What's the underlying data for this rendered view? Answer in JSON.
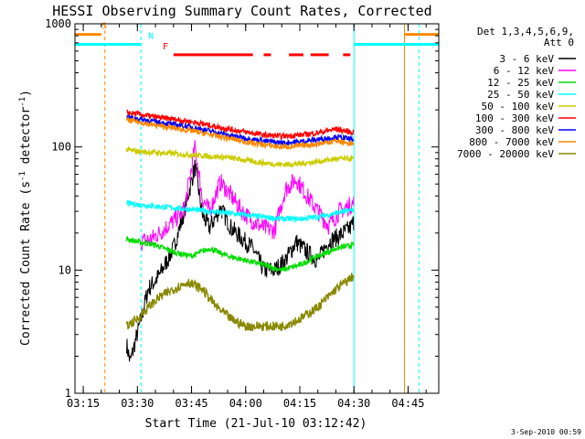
{
  "chart_data": {
    "type": "line",
    "title": "HESSI Observing Summary Count Rates, Corrected",
    "xlabel": "Start Time (21-Jul-10 03:12:42)",
    "ylabel": "Corrected Count Rate (s",
    "ylabel_sup1": "-1",
    "ylabel_mid": " detector",
    "ylabel_sup2": "-1",
    "ylabel_end": ")",
    "footer": "3-Sep-2010 00:59",
    "y_scale": "log",
    "ylim": [
      1,
      1000
    ],
    "xlim": [
      "03:12:42",
      "04:53:30"
    ],
    "x_ticks": [
      "03:15",
      "03:30",
      "03:45",
      "04:00",
      "04:15",
      "04:30",
      "04:45"
    ],
    "y_ticks": [
      "1",
      "10",
      "100",
      "1000"
    ],
    "legend": {
      "title1": "Det 1,3,4,5,6,9,",
      "title2": "Att 0",
      "placement": "right"
    },
    "series": [
      {
        "name": "3 - 6 keV",
        "color": "#000000",
        "x": [
          "03:27",
          "03:28",
          "03:31",
          "03:33",
          "03:36",
          "03:40",
          "03:43",
          "03:46",
          "03:48",
          "03:50",
          "03:53",
          "03:56",
          "03:59",
          "04:02",
          "04:05",
          "04:08",
          "04:11",
          "04:14",
          "04:17",
          "04:20",
          "04:23",
          "04:26",
          "04:29",
          "04:30"
        ],
        "y": [
          2.5,
          1.8,
          4,
          7,
          9,
          15,
          30,
          70,
          28,
          22,
          32,
          22,
          18,
          15,
          10,
          10,
          12,
          17,
          14,
          12,
          17,
          19,
          22,
          25
        ]
      },
      {
        "name": "6 - 12 keV",
        "color": "#ff00ff",
        "x": [
          "03:31",
          "03:34",
          "03:37",
          "03:40",
          "03:43",
          "03:46",
          "03:48",
          "03:50",
          "03:53",
          "03:56",
          "03:59",
          "04:02",
          "04:05",
          "04:08",
          "04:11",
          "04:14",
          "04:17",
          "04:20",
          "04:23",
          "04:26",
          "04:30"
        ],
        "y": [
          17,
          18,
          21,
          25,
          31,
          100,
          38,
          30,
          52,
          40,
          30,
          25,
          22,
          21,
          45,
          55,
          40,
          30,
          23,
          30,
          35
        ]
      },
      {
        "name": "12 - 25 keV",
        "color": "#00dd00",
        "x": [
          "03:27",
          "03:30",
          "03:35",
          "03:40",
          "03:45",
          "03:50",
          "03:55",
          "04:00",
          "04:05",
          "04:10",
          "04:15",
          "04:20",
          "04:25",
          "04:30"
        ],
        "y": [
          18,
          17,
          16,
          14,
          13,
          15,
          13,
          12,
          11,
          10,
          11,
          13,
          15,
          16
        ]
      },
      {
        "name": "25 - 50 keV",
        "color": "#00ffff",
        "x": [
          "03:27",
          "03:30",
          "03:35",
          "03:40",
          "03:45",
          "03:50",
          "03:55",
          "04:00",
          "04:05",
          "04:10",
          "04:15",
          "04:20",
          "04:25",
          "04:30"
        ],
        "y": [
          35,
          34,
          33,
          32,
          31,
          30,
          29,
          28,
          27,
          26,
          26,
          27,
          29,
          31
        ]
      },
      {
        "name": "50 - 100 keV",
        "color": "#cccc00",
        "x": [
          "03:27",
          "03:30",
          "03:35",
          "03:40",
          "03:45",
          "03:50",
          "03:55",
          "04:00",
          "04:05",
          "04:10",
          "04:15",
          "04:20",
          "04:25",
          "04:30"
        ],
        "y": [
          95,
          92,
          90,
          88,
          86,
          84,
          82,
          78,
          74,
          72,
          73,
          76,
          80,
          80
        ]
      },
      {
        "name": "100 - 300 keV",
        "color": "#ff0000",
        "x": [
          "03:27",
          "03:30",
          "03:35",
          "03:40",
          "03:45",
          "03:50",
          "03:55",
          "04:00",
          "04:05",
          "04:10",
          "04:15",
          "04:20",
          "04:25",
          "04:30"
        ],
        "y": [
          190,
          185,
          175,
          168,
          160,
          150,
          140,
          132,
          125,
          122,
          125,
          130,
          140,
          130
        ]
      },
      {
        "name": "300 - 800 keV",
        "color": "#0000ff",
        "x": [
          "03:27",
          "03:30",
          "03:35",
          "03:40",
          "03:45",
          "03:50",
          "03:55",
          "04:00",
          "04:05",
          "04:10",
          "04:15",
          "04:20",
          "04:25",
          "04:30"
        ],
        "y": [
          175,
          170,
          160,
          152,
          145,
          135,
          125,
          118,
          112,
          108,
          110,
          115,
          120,
          115
        ]
      },
      {
        "name": "800 - 7000 keV",
        "color": "#ff8800",
        "x": [
          "03:27",
          "03:30",
          "03:35",
          "03:40",
          "03:45",
          "03:50",
          "03:55",
          "04:00",
          "04:05",
          "04:10",
          "04:15",
          "04:20",
          "04:25",
          "04:30"
        ],
        "y": [
          165,
          160,
          150,
          142,
          135,
          126,
          118,
          110,
          104,
          100,
          102,
          106,
          112,
          105
        ]
      },
      {
        "name": "7000 - 20000 keV",
        "color": "#888800",
        "x": [
          "03:27",
          "03:30",
          "03:33",
          "03:36",
          "03:40",
          "03:44",
          "03:48",
          "03:52",
          "03:56",
          "04:00",
          "04:05",
          "04:10",
          "04:15",
          "04:20",
          "04:25",
          "04:30"
        ],
        "y": [
          3.5,
          4,
          5,
          6,
          7,
          8,
          7,
          5,
          4,
          3.5,
          3.5,
          3.5,
          4,
          5,
          7,
          9
        ]
      }
    ],
    "flags": [
      {
        "label": "S",
        "color": "#ff8800",
        "segments": [
          [
            "03:12:42",
            "03:20"
          ],
          [
            "04:44",
            "04:53:30"
          ]
        ],
        "level": 820,
        "label_at": "03:20",
        "vlines": [
          {
            "x": "03:21",
            "style": "dashed"
          },
          {
            "x": "04:44",
            "style": "solid"
          }
        ]
      },
      {
        "label": "N",
        "color": "#00ffff",
        "segments": [
          [
            "03:12:42",
            "03:31"
          ],
          [
            "04:30",
            "04:53:30"
          ]
        ],
        "level": 680,
        "label_at": "03:33",
        "vlines": [
          {
            "x": "03:31",
            "style": "dashed"
          },
          {
            "x": "04:30",
            "style": "solid"
          },
          {
            "x": "04:48",
            "style": "dashed"
          }
        ]
      },
      {
        "label": "F",
        "color": "#ff0000",
        "segments": [
          [
            "03:40",
            "04:02"
          ],
          [
            "04:05",
            "04:07"
          ],
          [
            "04:12",
            "04:16"
          ],
          [
            "04:18",
            "04:23"
          ],
          [
            "04:27",
            "04:29"
          ]
        ],
        "level": 560,
        "label_at": "03:37",
        "vlines": []
      }
    ]
  }
}
